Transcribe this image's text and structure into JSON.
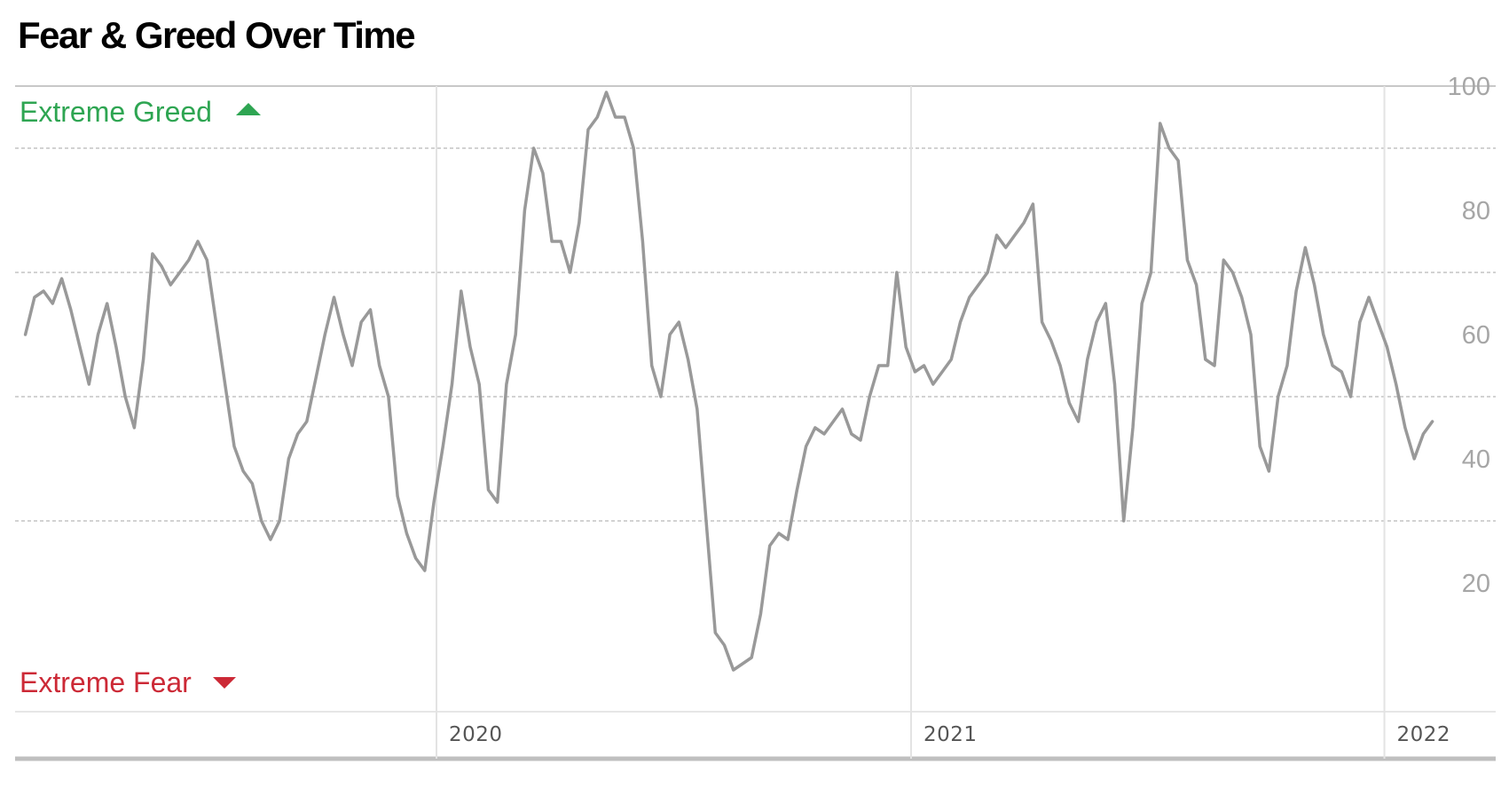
{
  "page": {
    "title": "Fear & Greed Over Time"
  },
  "colors": {
    "line": "#999999",
    "greed": "#2ea552",
    "fear": "#cc2936",
    "grid": "#c4c4c4",
    "ytick": "#a6a6a6",
    "xtick": "#555555"
  },
  "chart_data": {
    "type": "line",
    "title": "Fear & Greed Over Time",
    "xlabel": "",
    "ylabel": "",
    "ylim": [
      0,
      100
    ],
    "xlim": [
      "2019-02-18",
      "2022-02-07"
    ],
    "y_ticks": [
      "20",
      "40",
      "60",
      "80",
      "100"
    ],
    "y_tick_values": [
      20,
      40,
      60,
      80,
      100
    ],
    "x_ticks": [
      {
        "label": "2020",
        "date": "2020-01-01"
      },
      {
        "label": "2021",
        "date": "2021-01-01"
      },
      {
        "label": "2022",
        "date": "2022-01-01"
      }
    ],
    "zones": {
      "top": "Extreme Greed",
      "bottom": "Extreme Fear"
    },
    "grid": true,
    "legend": "none",
    "series": [
      {
        "points": [
          [
            "2019-02-18",
            60
          ],
          [
            "2019-02-25",
            66
          ],
          [
            "2019-03-04",
            67
          ],
          [
            "2019-03-11",
            65
          ],
          [
            "2019-03-18",
            69
          ],
          [
            "2019-03-25",
            64
          ],
          [
            "2019-04-01",
            58
          ],
          [
            "2019-04-08",
            52
          ],
          [
            "2019-04-15",
            60
          ],
          [
            "2019-04-22",
            65
          ],
          [
            "2019-04-29",
            58
          ],
          [
            "2019-05-06",
            50
          ],
          [
            "2019-05-13",
            45
          ],
          [
            "2019-05-20",
            56
          ],
          [
            "2019-05-27",
            73
          ],
          [
            "2019-06-03",
            71
          ],
          [
            "2019-06-10",
            68
          ],
          [
            "2019-06-17",
            70
          ],
          [
            "2019-06-24",
            72
          ],
          [
            "2019-07-01",
            75
          ],
          [
            "2019-07-08",
            72
          ],
          [
            "2019-07-15",
            62
          ],
          [
            "2019-07-22",
            52
          ],
          [
            "2019-07-29",
            42
          ],
          [
            "2019-08-05",
            38
          ],
          [
            "2019-08-12",
            36
          ],
          [
            "2019-08-19",
            30
          ],
          [
            "2019-08-26",
            27
          ],
          [
            "2019-09-02",
            30
          ],
          [
            "2019-09-09",
            40
          ],
          [
            "2019-09-16",
            44
          ],
          [
            "2019-09-23",
            46
          ],
          [
            "2019-09-30",
            53
          ],
          [
            "2019-10-07",
            60
          ],
          [
            "2019-10-14",
            66
          ],
          [
            "2019-10-21",
            60
          ],
          [
            "2019-10-28",
            55
          ],
          [
            "2019-11-04",
            62
          ],
          [
            "2019-11-11",
            64
          ],
          [
            "2019-11-18",
            55
          ],
          [
            "2019-11-25",
            50
          ],
          [
            "2019-12-02",
            34
          ],
          [
            "2019-12-09",
            28
          ],
          [
            "2019-12-16",
            24
          ],
          [
            "2019-12-23",
            22
          ],
          [
            "2019-12-30",
            33
          ],
          [
            "2020-01-06",
            42
          ],
          [
            "2020-01-13",
            52
          ],
          [
            "2020-01-20",
            67
          ],
          [
            "2020-01-27",
            58
          ],
          [
            "2020-02-03",
            52
          ],
          [
            "2020-02-10",
            35
          ],
          [
            "2020-02-17",
            33
          ],
          [
            "2020-02-24",
            52
          ],
          [
            "2020-03-02",
            60
          ],
          [
            "2020-03-09",
            80
          ],
          [
            "2020-03-16",
            90
          ],
          [
            "2020-03-23",
            86
          ],
          [
            "2020-03-30",
            75
          ],
          [
            "2020-04-06",
            75
          ],
          [
            "2020-04-13",
            70
          ],
          [
            "2020-04-20",
            78
          ],
          [
            "2020-04-27",
            93
          ],
          [
            "2020-05-04",
            95
          ],
          [
            "2020-05-11",
            99
          ],
          [
            "2020-05-18",
            95
          ],
          [
            "2020-05-25",
            95
          ],
          [
            "2020-06-01",
            90
          ],
          [
            "2020-06-08",
            75
          ],
          [
            "2020-06-15",
            55
          ],
          [
            "2020-06-22",
            50
          ],
          [
            "2020-06-29",
            60
          ],
          [
            "2020-07-06",
            62
          ],
          [
            "2020-07-13",
            56
          ],
          [
            "2020-07-20",
            48
          ],
          [
            "2020-07-27",
            30
          ],
          [
            "2020-08-03",
            12
          ],
          [
            "2020-08-10",
            10
          ],
          [
            "2020-08-17",
            6
          ],
          [
            "2020-08-24",
            7
          ],
          [
            "2020-08-31",
            8
          ],
          [
            "2020-09-07",
            15
          ],
          [
            "2020-09-14",
            26
          ],
          [
            "2020-09-21",
            28
          ],
          [
            "2020-09-28",
            27
          ],
          [
            "2020-10-05",
            35
          ],
          [
            "2020-10-12",
            42
          ],
          [
            "2020-10-19",
            45
          ],
          [
            "2020-10-26",
            44
          ],
          [
            "2020-11-02",
            46
          ],
          [
            "2020-11-09",
            48
          ],
          [
            "2020-11-16",
            44
          ],
          [
            "2020-11-23",
            43
          ],
          [
            "2020-11-30",
            50
          ],
          [
            "2020-12-07",
            55
          ],
          [
            "2020-12-14",
            55
          ],
          [
            "2020-12-21",
            70
          ],
          [
            "2020-12-28",
            58
          ],
          [
            "2021-01-04",
            54
          ],
          [
            "2021-01-11",
            55
          ],
          [
            "2021-01-18",
            52
          ],
          [
            "2021-01-25",
            54
          ],
          [
            "2021-02-01",
            56
          ],
          [
            "2021-02-08",
            62
          ],
          [
            "2021-02-15",
            66
          ],
          [
            "2021-02-22",
            68
          ],
          [
            "2021-03-01",
            70
          ],
          [
            "2021-03-08",
            76
          ],
          [
            "2021-03-15",
            74
          ],
          [
            "2021-03-22",
            76
          ],
          [
            "2021-03-29",
            78
          ],
          [
            "2021-04-05",
            81
          ],
          [
            "2021-04-12",
            62
          ],
          [
            "2021-04-19",
            59
          ],
          [
            "2021-04-26",
            55
          ],
          [
            "2021-05-03",
            49
          ],
          [
            "2021-05-10",
            46
          ],
          [
            "2021-05-17",
            56
          ],
          [
            "2021-05-24",
            62
          ],
          [
            "2021-05-31",
            65
          ],
          [
            "2021-06-07",
            52
          ],
          [
            "2021-06-14",
            30
          ],
          [
            "2021-06-21",
            45
          ],
          [
            "2021-06-28",
            65
          ],
          [
            "2021-07-05",
            70
          ],
          [
            "2021-07-12",
            94
          ],
          [
            "2021-07-19",
            90
          ],
          [
            "2021-07-26",
            88
          ],
          [
            "2021-08-02",
            72
          ],
          [
            "2021-08-09",
            68
          ],
          [
            "2021-08-16",
            56
          ],
          [
            "2021-08-23",
            55
          ],
          [
            "2021-08-30",
            72
          ],
          [
            "2021-09-06",
            70
          ],
          [
            "2021-09-13",
            66
          ],
          [
            "2021-09-20",
            60
          ],
          [
            "2021-09-27",
            42
          ],
          [
            "2021-10-04",
            38
          ],
          [
            "2021-10-11",
            50
          ],
          [
            "2021-10-18",
            55
          ],
          [
            "2021-10-25",
            67
          ],
          [
            "2021-11-01",
            74
          ],
          [
            "2021-11-08",
            68
          ],
          [
            "2021-11-15",
            60
          ],
          [
            "2021-11-22",
            55
          ],
          [
            "2021-11-29",
            54
          ],
          [
            "2021-12-06",
            50
          ],
          [
            "2021-12-13",
            62
          ],
          [
            "2021-12-20",
            66
          ],
          [
            "2021-12-27",
            62
          ],
          [
            "2022-01-03",
            58
          ],
          [
            "2022-01-10",
            52
          ],
          [
            "2022-01-17",
            45
          ],
          [
            "2022-01-24",
            40
          ],
          [
            "2022-01-31",
            44
          ],
          [
            "2022-02-07",
            46
          ]
        ]
      }
    ]
  }
}
